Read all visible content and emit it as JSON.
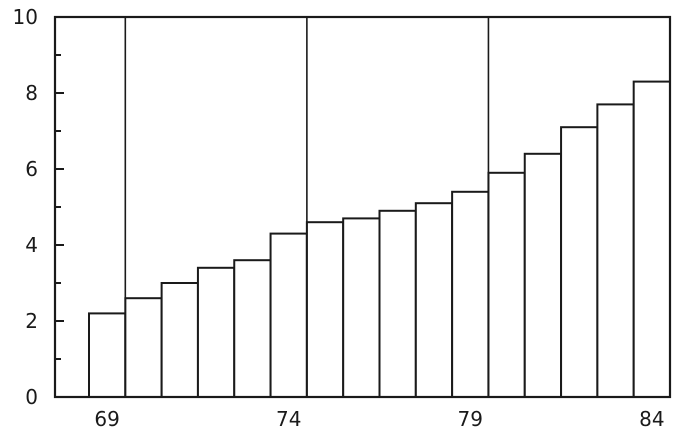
{
  "chart_data": {
    "type": "bar",
    "categories": [
      "69",
      "70",
      "71",
      "72",
      "73",
      "74",
      "75",
      "76",
      "77",
      "78",
      "79",
      "80",
      "81",
      "82",
      "83",
      "84"
    ],
    "values": [
      2.2,
      2.6,
      3.0,
      3.4,
      3.6,
      4.3,
      4.6,
      4.7,
      4.9,
      5.1,
      5.4,
      5.9,
      6.4,
      7.1,
      7.7,
      8.3
    ],
    "x_tick_labels": [
      "69",
      "74",
      "79",
      "84"
    ],
    "y_tick_labels": [
      "0",
      "2",
      "4",
      "6",
      "8",
      "10"
    ],
    "ylim": [
      0,
      10
    ],
    "title": "",
    "xlabel": "",
    "ylabel": "",
    "grid": "vertical lines at bar boundaries 69|70, 74|75, 79|80",
    "colors": {
      "bar_fill": "#ffffff",
      "stroke": "#1a1a1a",
      "background": "#ffffff"
    }
  }
}
